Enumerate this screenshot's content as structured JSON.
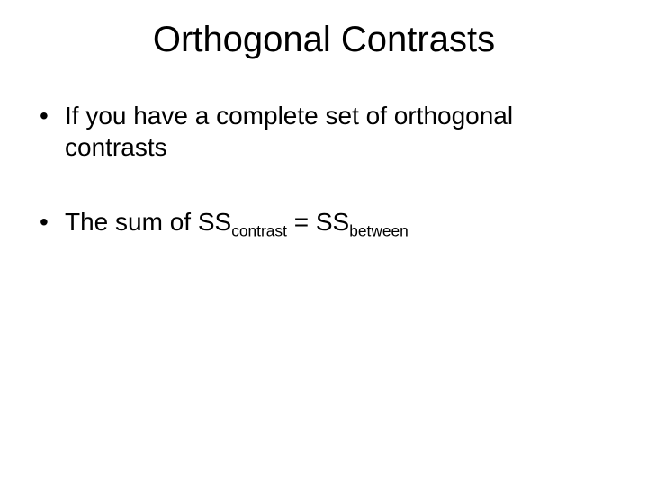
{
  "title": "Orthogonal Contrasts",
  "bullets": [
    {
      "text_pre": "If you have a complete set of orthogonal contrasts",
      "has_formula": false
    },
    {
      "text_pre": "The sum of SS",
      "sub1": "contrast",
      "mid": " = SS",
      "sub2": "between",
      "has_formula": true
    }
  ],
  "colors": {
    "background": "#ffffff",
    "text": "#000000"
  },
  "typography": {
    "title_fontsize": 40,
    "body_fontsize": 28,
    "font_family": "Arial"
  }
}
